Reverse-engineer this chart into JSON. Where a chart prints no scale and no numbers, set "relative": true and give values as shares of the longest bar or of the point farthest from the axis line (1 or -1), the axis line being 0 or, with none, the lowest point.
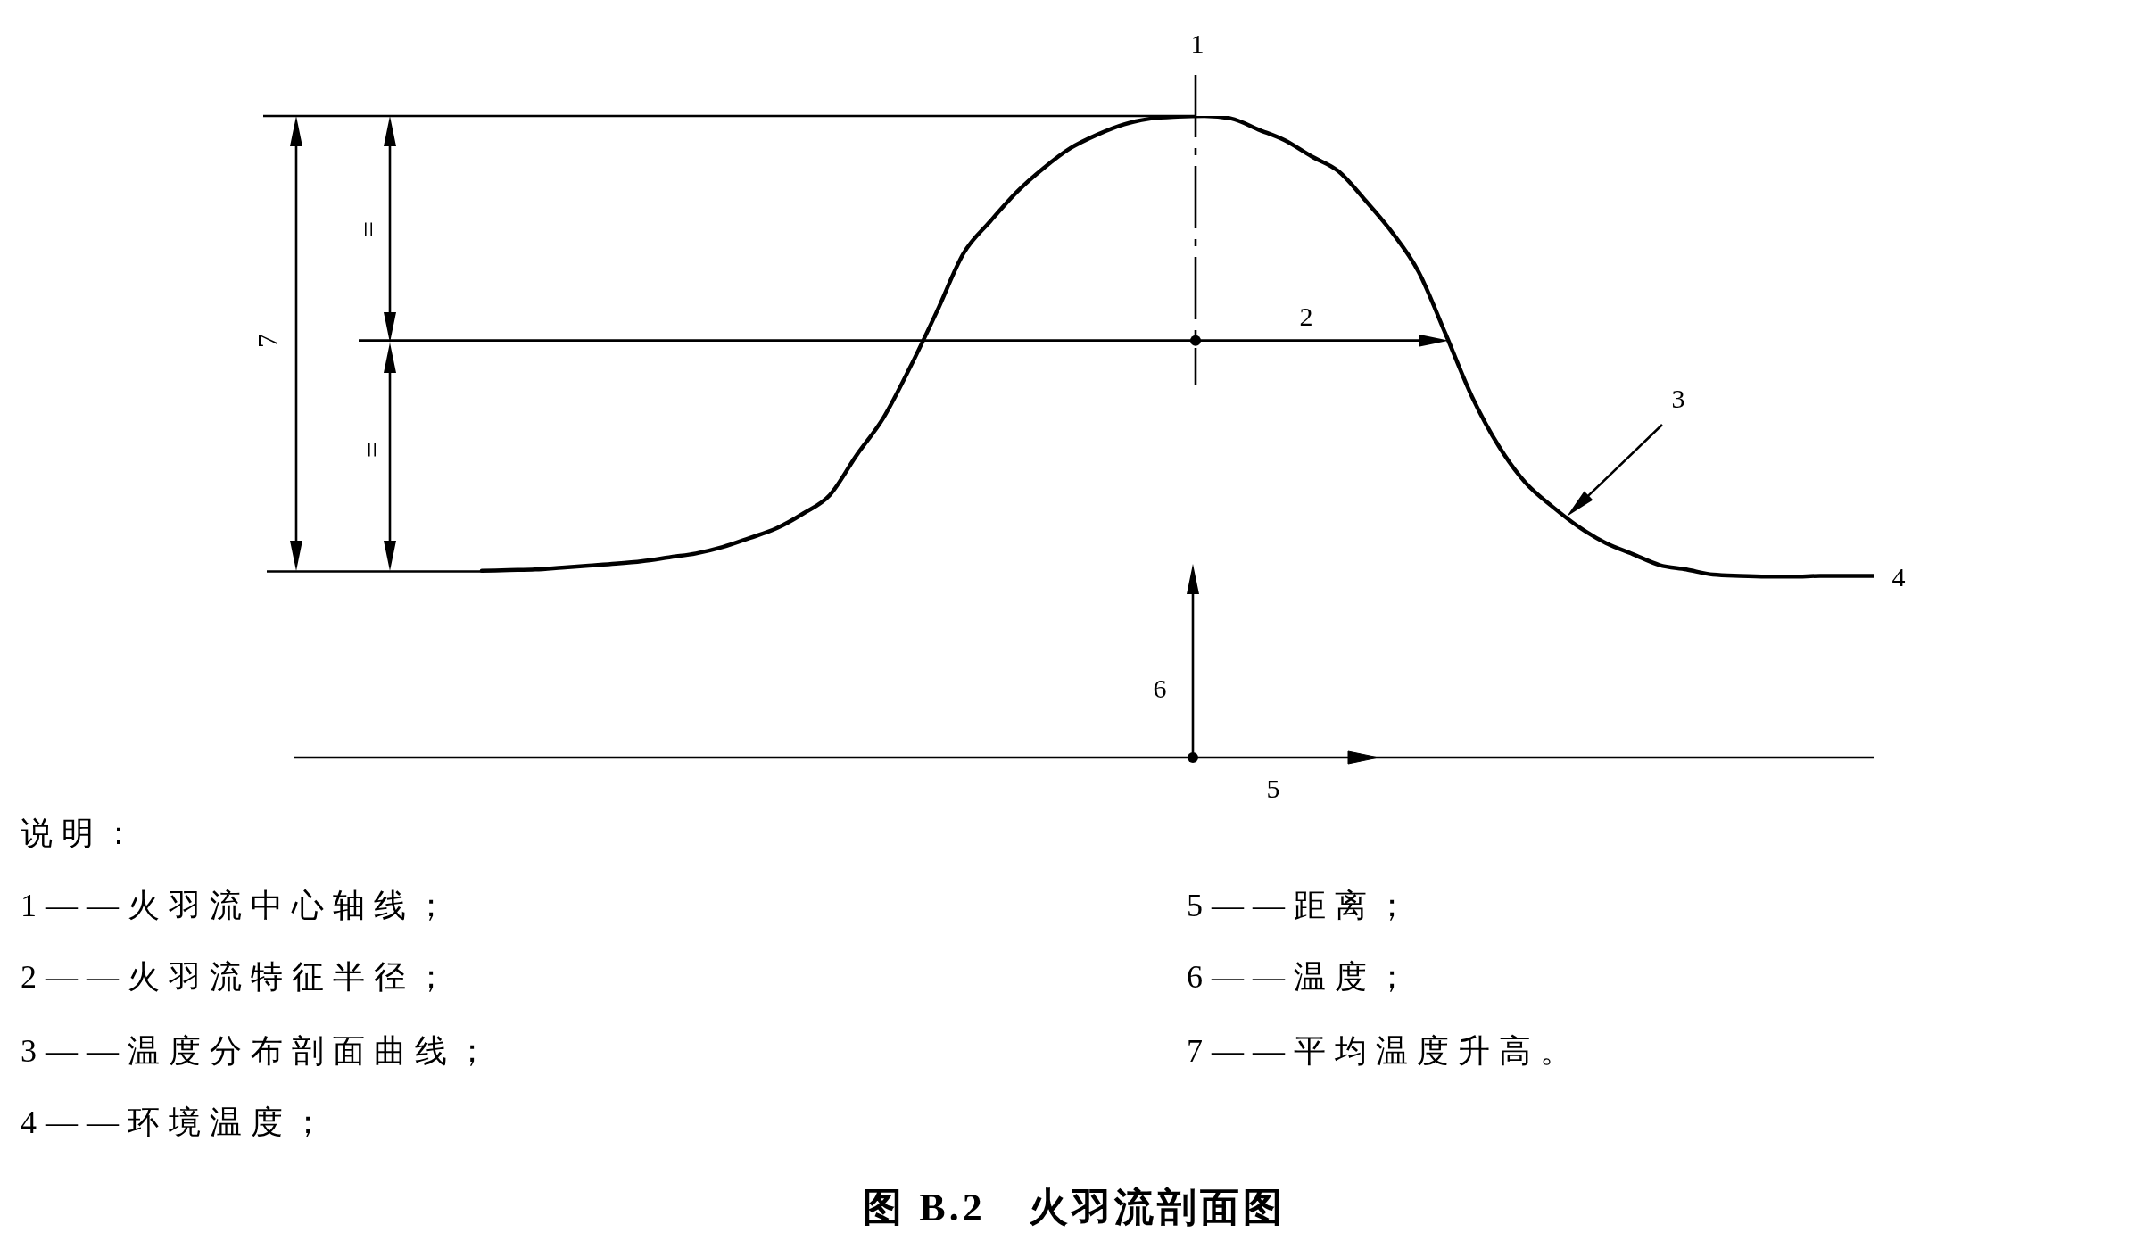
{
  "chart_data": {
    "type": "line",
    "relative": true,
    "title": "图 B.2　火羽流剖面图",
    "categories": [
      null,
      null,
      null,
      null,
      null,
      null,
      null,
      null,
      null,
      null,
      null,
      null,
      null,
      null,
      null,
      null,
      null,
      null,
      null,
      null,
      null,
      null,
      null,
      null,
      null,
      null,
      null,
      null,
      null,
      null,
      null,
      null,
      null,
      null,
      null,
      null,
      null,
      null,
      null,
      null,
      null,
      null,
      null,
      null,
      null,
      null,
      null,
      null,
      null,
      null,
      null,
      null,
      null,
      null,
      null,
      null,
      null,
      null,
      null,
      null
    ],
    "series": [
      {
        "color": "#000000",
        "values": [
          null,
          null,
          null,
          null,
          null,
          null,
          null,
          0.291,
          0.292,
          0.293,
          0.296,
          0.299,
          0.302,
          0.306,
          0.312,
          0.318,
          0.328,
          0.342,
          0.357,
          0.38,
          0.409,
          0.471,
          0.529,
          0.608,
          0.695,
          0.786,
          0.836,
          0.882,
          0.919,
          0.95,
          0.971,
          0.987,
          0.996,
          0.999,
          1,
          0.996,
          0.979,
          0.962,
          0.937,
          0.914,
          0.869,
          0.819,
          0.757,
          0.661,
          0.562,
          0.485,
          0.428,
          0.391,
          0.359,
          0.334,
          0.317,
          0.3,
          0.293,
          0.285,
          0.283,
          0.282,
          0.282,
          0.283,
          0.283,
          0.283
        ]
      }
    ],
    "ref_lines": [
      {
        "axis": "y",
        "value": 1,
        "color": "#000000"
      },
      {
        "axis": "y",
        "value": 0.29,
        "color": "#000000"
      },
      {
        "axis": "y",
        "value": 0.65,
        "color": "#000000"
      }
    ],
    "annotations": [
      "1",
      "2",
      "3",
      "4",
      "5",
      "6",
      "7",
      "=",
      "=",
      "说明：",
      "1——火羽流中心轴线；",
      "2——火羽流特征半径；",
      "3——温度分布剖面曲线；",
      "4——环境温度；",
      "5——距离；",
      "6——温度；",
      "7——平均温度升高。"
    ]
  }
}
